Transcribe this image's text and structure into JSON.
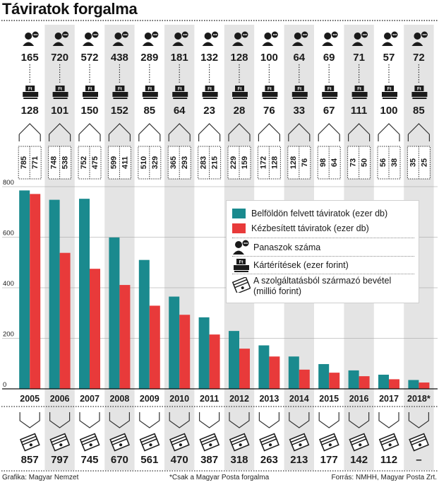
{
  "title": "Táviratok forgalma",
  "chart_data": {
    "type": "bar",
    "categories": [
      "2005",
      "2006",
      "2007",
      "2008",
      "2009",
      "2010",
      "2011",
      "2012",
      "2013",
      "2014",
      "2015",
      "2016",
      "2017",
      "2018*"
    ],
    "series": [
      {
        "name": "Belföldön felvett táviratok (ezer db)",
        "color": "#1a8a8e",
        "values": [
          785,
          748,
          752,
          599,
          510,
          365,
          283,
          229,
          172,
          128,
          98,
          73,
          56,
          35
        ]
      },
      {
        "name": "Kézbesített táviratok (ezer db)",
        "color": "#e83a3a",
        "values": [
          771,
          538,
          475,
          411,
          329,
          293,
          215,
          159,
          128,
          76,
          64,
          50,
          38,
          25
        ]
      }
    ],
    "complaints": [
      165,
      720,
      572,
      438,
      289,
      181,
      132,
      128,
      100,
      64,
      69,
      71,
      57,
      72
    ],
    "compensation": [
      128,
      101,
      150,
      152,
      85,
      64,
      23,
      28,
      76,
      33,
      67,
      111,
      100,
      85
    ],
    "revenue": [
      "857",
      "797",
      "745",
      "670",
      "561",
      "470",
      "387",
      "318",
      "263",
      "213",
      "177",
      "142",
      "112",
      "–"
    ],
    "yticks": [
      0,
      200,
      400,
      600,
      800
    ],
    "ylim": [
      0,
      800
    ],
    "grid": true
  },
  "legend": {
    "items": [
      {
        "label": "Belföldön felvett táviratok (ezer db)",
        "icon": "teal-swatch"
      },
      {
        "label": "Kézbesített táviratok (ezer db)",
        "icon": "red-swatch"
      },
      {
        "label": "Panaszok száma",
        "icon": "person-icon"
      },
      {
        "label": "Kártérítések (ezer forint)",
        "icon": "cash-register-icon"
      },
      {
        "label": "A szolgáltatásból származó bevétel (millió forint)",
        "icon": "banknotes-icon"
      }
    ]
  },
  "footer": {
    "credit": "Grafika: Magyar Nemzet",
    "note": "*Csak a Magyar Posta forgalma",
    "source": "Forrás: NMHH, Magyar Posta Zrt."
  }
}
